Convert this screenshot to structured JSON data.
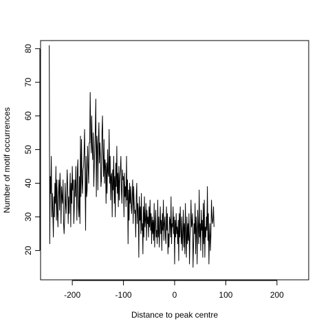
{
  "chart_data": {
    "type": "line",
    "title": "",
    "xlabel": "Distance to peak centre",
    "ylabel": "Number of motif occurrences",
    "xlim": [
      -262,
      262
    ],
    "ylim": [
      11.3,
      82.4
    ],
    "x_ticks": [
      -200,
      -100,
      0,
      100,
      200
    ],
    "y_ticks": [
      20,
      30,
      40,
      50,
      60,
      70,
      80
    ],
    "x_tick_labels": [
      "-200",
      "-100",
      "0",
      "100",
      "200"
    ],
    "y_tick_labels": [
      "20",
      "30",
      "40",
      "50",
      "60",
      "70",
      "80"
    ],
    "grid": false,
    "legend": "none",
    "line_color": "#000000",
    "series": [
      {
        "x_start": -245,
        "x_step": 1,
        "values": [
          81,
          22,
          42,
          37,
          48,
          30,
          37,
          31,
          24,
          36,
          30,
          40,
          34,
          45,
          29,
          41,
          31,
          27,
          37,
          41,
          32,
          43,
          38,
          28,
          39,
          36,
          34,
          41,
          28,
          25,
          29,
          40,
          34,
          31,
          37,
          44,
          39,
          28,
          36,
          31,
          38,
          43,
          27,
          40,
          34,
          45,
          38,
          41,
          28,
          33,
          41,
          36,
          45,
          38,
          29,
          44,
          47,
          33,
          30,
          42,
          28,
          54,
          36,
          53,
          41,
          37,
          44,
          45,
          49,
          56,
          42,
          26,
          48,
          36,
          38,
          51,
          45,
          40,
          52,
          52,
          67,
          55,
          49,
          60,
          51,
          47,
          55,
          39,
          45,
          51,
          56,
          65,
          36,
          54,
          51,
          38,
          53,
          58,
          46,
          52,
          48,
          39,
          41,
          55,
          60,
          49,
          42,
          53,
          40,
          47,
          45,
          34,
          46,
          37,
          50,
          43,
          42,
          56,
          40,
          48,
          35,
          42,
          43,
          30,
          44,
          38,
          48,
          34,
          42,
          30,
          46,
          39,
          51,
          37,
          43,
          33,
          45,
          35,
          42,
          44,
          48,
          38,
          34,
          44,
          41,
          42,
          30,
          43,
          36,
          39,
          33,
          48,
          35,
          41,
          22,
          38,
          29,
          40,
          34,
          39,
          33,
          31,
          37,
          41,
          28,
          39,
          34,
          31,
          32,
          24,
          36,
          40,
          28,
          34,
          32,
          18,
          36,
          29,
          33,
          25,
          37,
          26,
          28,
          19,
          33,
          24,
          36,
          27,
          29,
          34,
          23,
          32,
          28,
          30,
          24,
          33,
          27,
          35,
          26,
          31,
          22,
          30,
          25,
          29,
          23,
          34,
          21,
          28,
          32,
          24,
          26,
          22,
          35,
          24,
          30,
          21,
          27,
          33,
          25,
          29,
          20,
          31,
          26,
          35,
          23,
          28,
          30,
          24,
          22,
          33,
          26,
          31,
          19,
          25,
          21,
          30,
          29,
          24,
          36,
          22,
          28,
          27,
          33,
          25,
          30,
          16,
          29,
          24,
          31,
          25,
          27,
          22,
          29,
          17,
          31,
          24,
          33,
          26,
          22,
          30,
          20,
          25,
          32,
          21,
          28,
          19,
          34,
          24,
          18,
          30,
          22,
          28,
          23,
          31,
          16,
          24,
          26,
          35,
          27,
          28,
          31,
          15,
          22,
          28,
          25,
          34,
          19,
          30,
          26,
          16,
          32,
          27,
          22,
          38,
          24,
          28,
          20,
          32,
          26,
          29,
          18,
          34,
          22,
          35,
          18,
          27,
          24,
          30,
          26,
          39,
          23,
          31,
          16,
          24,
          28,
          20,
          25,
          35,
          30,
          28,
          29,
          33,
          27
        ]
      }
    ]
  }
}
